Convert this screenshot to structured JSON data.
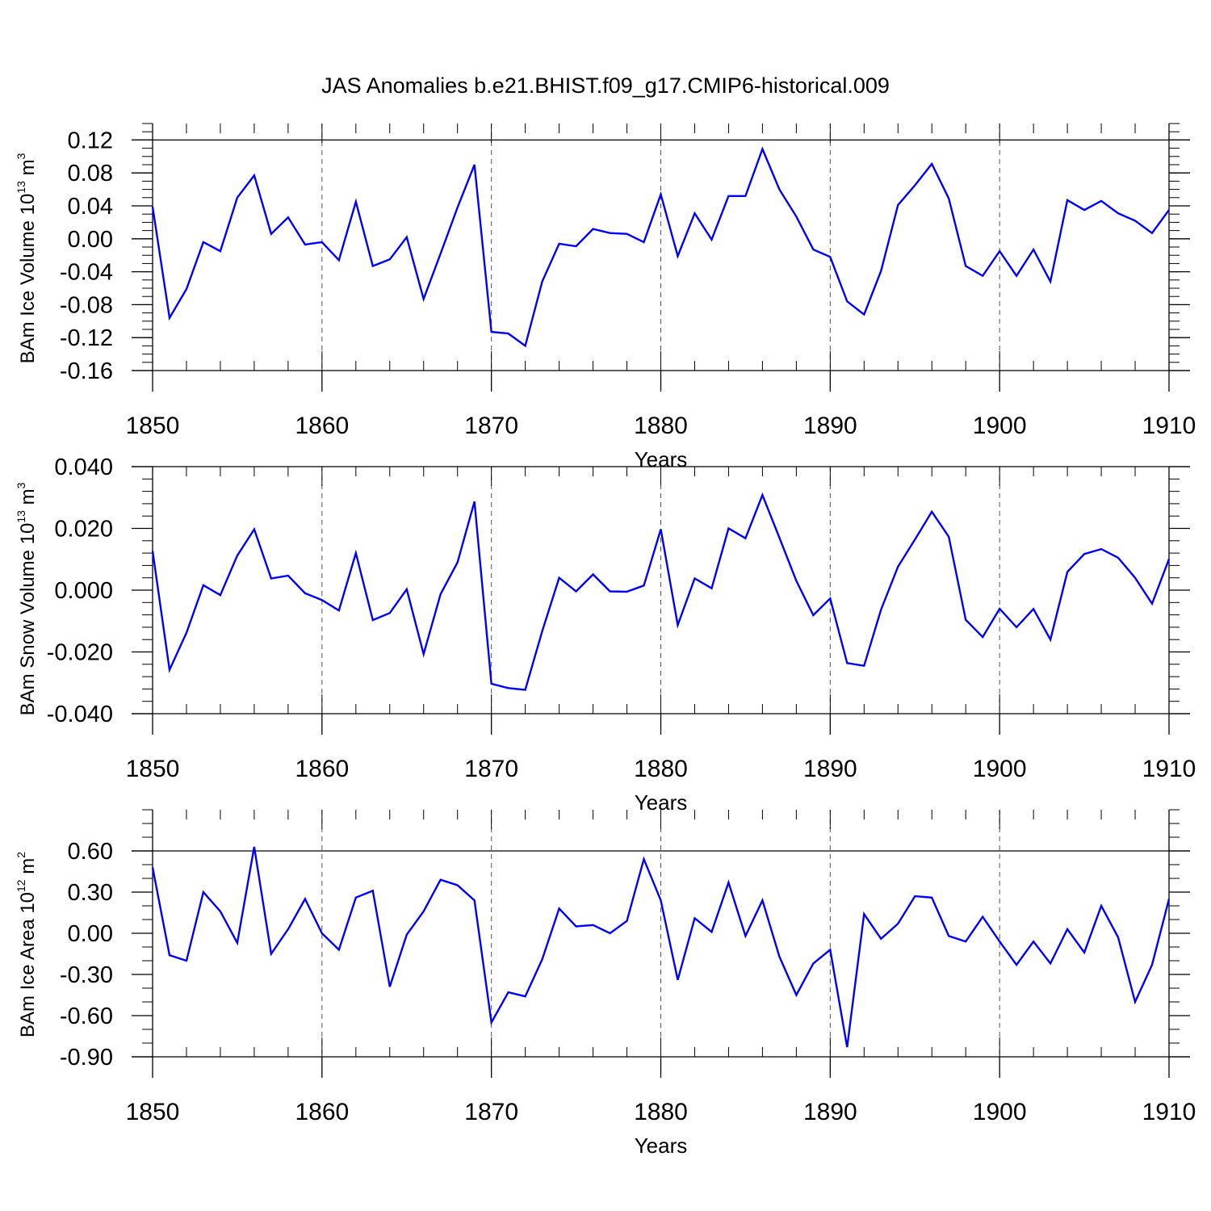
{
  "figure_title": "JAS Anomalies b.e21.BHIST.f09_g17.CMIP6-historical.009",
  "colors": {
    "line": "#0000ff",
    "axes": "#000000",
    "grid": "#555555"
  },
  "chart_data": [
    {
      "type": "line",
      "ylabel": {
        "text": "BAm Ice Volume 10",
        "exp": "13",
        "unit": " m",
        "unit_exp": "3"
      },
      "xlabel": "Years",
      "xlim": [
        1850,
        1910
      ],
      "xticks": [
        1850,
        1860,
        1870,
        1880,
        1890,
        1900,
        1910
      ],
      "ylim": [
        -0.16,
        0.14
      ],
      "yticks": [
        "0.12",
        "0.08",
        "0.04",
        "0.00",
        "-0.04",
        "-0.08",
        "-0.12",
        "-0.16"
      ],
      "ytick_values": [
        0.12,
        0.08,
        0.04,
        0.0,
        -0.04,
        -0.08,
        -0.12,
        -0.16
      ],
      "yminor_step": 0.01,
      "grid": "vertical dashed at major x ticks",
      "series": [
        {
          "name": "BAm Ice Volume",
          "x_start": 1850,
          "values": [
            0.039,
            -0.096,
            -0.061,
            -0.004,
            -0.015,
            0.05,
            0.077,
            0.006,
            0.026,
            -0.007,
            -0.004,
            -0.026,
            0.045,
            -0.033,
            -0.025,
            0.002,
            -0.073,
            -0.018,
            0.038,
            0.09,
            -0.113,
            -0.115,
            -0.13,
            -0.052,
            -0.006,
            -0.009,
            0.012,
            0.007,
            0.006,
            -0.004,
            0.054,
            -0.021,
            0.031,
            -0.001,
            0.052,
            0.052,
            0.109,
            0.06,
            0.027,
            -0.013,
            -0.022,
            -0.076,
            -0.092,
            -0.039,
            0.041,
            0.065,
            0.091,
            0.049,
            -0.033,
            -0.045,
            -0.015,
            -0.045,
            -0.013,
            -0.052,
            0.047,
            0.035,
            0.046,
            0.031,
            0.022,
            0.007,
            0.035
          ]
        }
      ]
    },
    {
      "type": "line",
      "ylabel": {
        "text": "BAm Snow Volume 10",
        "exp": "13",
        "unit": " m",
        "unit_exp": "3"
      },
      "xlabel": "Years",
      "xlim": [
        1850,
        1910
      ],
      "xticks": [
        1850,
        1860,
        1870,
        1880,
        1890,
        1900,
        1910
      ],
      "ylim": [
        -0.04,
        0.04
      ],
      "yticks": [
        "0.040",
        "0.020",
        "0.000",
        "-0.020",
        "-0.040"
      ],
      "ytick_values": [
        0.04,
        0.02,
        0.0,
        -0.02,
        -0.04
      ],
      "yminor_step": 0.004,
      "grid": "vertical dashed at major x ticks",
      "series": [
        {
          "name": "BAm Snow Volume",
          "x_start": 1850,
          "values": [
            0.0127,
            -0.0258,
            -0.0138,
            0.0016,
            -0.0016,
            0.0112,
            0.0197,
            0.0038,
            0.0047,
            -0.001,
            -0.0032,
            -0.0066,
            0.012,
            -0.0097,
            -0.0074,
            0.0003,
            -0.0207,
            -0.0013,
            0.009,
            0.0287,
            -0.0303,
            -0.0317,
            -0.0323,
            -0.0133,
            0.004,
            -0.0004,
            0.0051,
            -0.0004,
            -0.0005,
            0.0015,
            0.0197,
            -0.0113,
            0.0038,
            0.0006,
            0.02,
            0.0168,
            0.0308,
            0.017,
            0.003,
            -0.0081,
            -0.0027,
            -0.0236,
            -0.0245,
            -0.0063,
            0.0076,
            0.0164,
            0.0254,
            0.0173,
            -0.0096,
            -0.0152,
            -0.006,
            -0.012,
            -0.0061,
            -0.016,
            0.0059,
            0.0117,
            0.0133,
            0.0105,
            0.004,
            -0.0044,
            0.0101
          ]
        }
      ]
    },
    {
      "type": "line",
      "ylabel": {
        "text": "BAm Ice Area 10",
        "exp": "12",
        "unit": " m",
        "unit_exp": "2"
      },
      "xlabel": "Years",
      "xlim": [
        1850,
        1910
      ],
      "xticks": [
        1850,
        1860,
        1870,
        1880,
        1890,
        1900,
        1910
      ],
      "ylim": [
        -0.9,
        0.9
      ],
      "yticks": [
        "0.60",
        "0.30",
        "0.00",
        "-0.30",
        "-0.60",
        "-0.90"
      ],
      "ytick_values": [
        0.6,
        0.3,
        0.0,
        -0.3,
        -0.6,
        -0.9
      ],
      "yminor_step": 0.1,
      "grid": "vertical dashed at major x ticks",
      "series": [
        {
          "name": "BAm Ice Area",
          "x_start": 1850,
          "values": [
            0.48,
            -0.16,
            -0.2,
            0.3,
            0.16,
            -0.07,
            0.63,
            -0.15,
            0.03,
            0.25,
            0.0,
            -0.12,
            0.26,
            0.31,
            -0.39,
            -0.01,
            0.16,
            0.39,
            0.35,
            0.24,
            -0.65,
            -0.43,
            -0.46,
            -0.19,
            0.18,
            0.05,
            0.06,
            0.0,
            0.09,
            0.54,
            0.24,
            -0.34,
            0.11,
            0.01,
            0.37,
            -0.02,
            0.24,
            -0.17,
            -0.45,
            -0.22,
            -0.12,
            -0.83,
            0.14,
            -0.04,
            0.07,
            0.27,
            0.26,
            -0.02,
            -0.06,
            0.12,
            -0.06,
            -0.23,
            -0.06,
            -0.22,
            0.03,
            -0.14,
            0.2,
            -0.03,
            -0.5,
            -0.23,
            0.25
          ]
        }
      ]
    }
  ]
}
